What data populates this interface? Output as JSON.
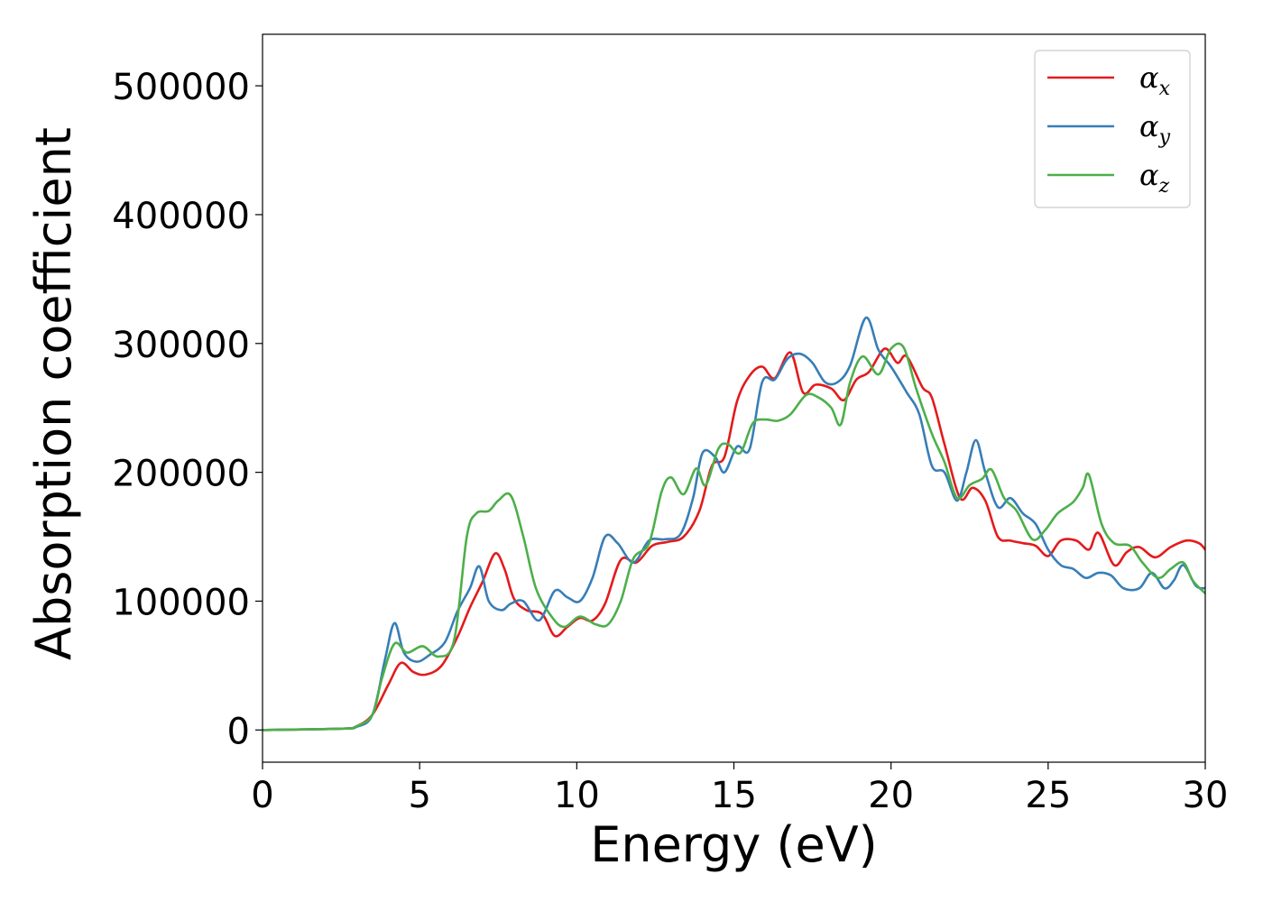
{
  "chart_data": {
    "type": "line",
    "title": "",
    "xlabel": "Energy (eV)",
    "ylabel": "Absorption coefficient",
    "xlim": [
      0,
      30
    ],
    "ylim": [
      -25000,
      540000
    ],
    "xticks": [
      0,
      5,
      10,
      15,
      20,
      25,
      30
    ],
    "yticks": [
      0,
      100000,
      200000,
      300000,
      400000,
      500000
    ],
    "xtick_labels": [
      "0",
      "5",
      "10",
      "15",
      "20",
      "25",
      "30"
    ],
    "ytick_labels": [
      "0",
      "100000",
      "200000",
      "300000",
      "400000",
      "500000"
    ],
    "grid": false,
    "legend_position": "top-right",
    "series": [
      {
        "name": "α_x",
        "label_main": "α",
        "label_sub": "x",
        "color": "#e41a1c",
        "points": [
          [
            0,
            0
          ],
          [
            2.5,
            1000
          ],
          [
            3.0,
            3000
          ],
          [
            3.5,
            12000
          ],
          [
            4.0,
            35000
          ],
          [
            4.4,
            52000
          ],
          [
            4.8,
            45000
          ],
          [
            5.2,
            43000
          ],
          [
            5.7,
            50000
          ],
          [
            6.2,
            72000
          ],
          [
            6.6,
            95000
          ],
          [
            7.0,
            115000
          ],
          [
            7.4,
            137000
          ],
          [
            7.7,
            125000
          ],
          [
            8.0,
            102000
          ],
          [
            8.4,
            93000
          ],
          [
            8.9,
            90000
          ],
          [
            9.3,
            73000
          ],
          [
            9.7,
            80000
          ],
          [
            10.1,
            87000
          ],
          [
            10.5,
            85000
          ],
          [
            10.9,
            98000
          ],
          [
            11.4,
            132000
          ],
          [
            11.9,
            130000
          ],
          [
            12.4,
            143000
          ],
          [
            12.9,
            146000
          ],
          [
            13.4,
            150000
          ],
          [
            13.9,
            170000
          ],
          [
            14.3,
            205000
          ],
          [
            14.7,
            212000
          ],
          [
            15.1,
            255000
          ],
          [
            15.5,
            275000
          ],
          [
            15.9,
            282000
          ],
          [
            16.3,
            273000
          ],
          [
            16.8,
            293000
          ],
          [
            17.2,
            262000
          ],
          [
            17.6,
            268000
          ],
          [
            18.1,
            265000
          ],
          [
            18.5,
            256000
          ],
          [
            18.9,
            272000
          ],
          [
            19.3,
            278000
          ],
          [
            19.8,
            296000
          ],
          [
            20.2,
            285000
          ],
          [
            20.5,
            290000
          ],
          [
            21.0,
            266000
          ],
          [
            21.3,
            258000
          ],
          [
            21.7,
            222000
          ],
          [
            22.2,
            180000
          ],
          [
            22.6,
            188000
          ],
          [
            23.0,
            178000
          ],
          [
            23.4,
            150000
          ],
          [
            23.8,
            147000
          ],
          [
            24.2,
            145000
          ],
          [
            24.6,
            143000
          ],
          [
            25.0,
            135000
          ],
          [
            25.4,
            147000
          ],
          [
            25.9,
            147000
          ],
          [
            26.3,
            140000
          ],
          [
            26.6,
            153000
          ],
          [
            27.1,
            128000
          ],
          [
            27.5,
            138000
          ],
          [
            27.9,
            142000
          ],
          [
            28.4,
            134000
          ],
          [
            28.9,
            142000
          ],
          [
            29.4,
            147000
          ],
          [
            29.8,
            145000
          ],
          [
            30.0,
            140000
          ]
        ]
      },
      {
        "name": "α_y",
        "label_main": "α",
        "label_sub": "y",
        "color": "#377eb8",
        "points": [
          [
            0,
            0
          ],
          [
            2.5,
            1000
          ],
          [
            3.0,
            2500
          ],
          [
            3.5,
            12000
          ],
          [
            3.9,
            55000
          ],
          [
            4.2,
            83000
          ],
          [
            4.5,
            60000
          ],
          [
            4.9,
            53000
          ],
          [
            5.3,
            58000
          ],
          [
            5.8,
            68000
          ],
          [
            6.2,
            92000
          ],
          [
            6.6,
            110000
          ],
          [
            6.9,
            127000
          ],
          [
            7.2,
            100000
          ],
          [
            7.6,
            93000
          ],
          [
            7.9,
            98000
          ],
          [
            8.3,
            100000
          ],
          [
            8.8,
            85000
          ],
          [
            9.3,
            108000
          ],
          [
            9.7,
            103000
          ],
          [
            10.1,
            100000
          ],
          [
            10.5,
            118000
          ],
          [
            10.9,
            150000
          ],
          [
            11.3,
            145000
          ],
          [
            11.8,
            130000
          ],
          [
            12.3,
            147000
          ],
          [
            12.8,
            148000
          ],
          [
            13.3,
            152000
          ],
          [
            13.7,
            180000
          ],
          [
            14.0,
            215000
          ],
          [
            14.4,
            212000
          ],
          [
            14.7,
            200000
          ],
          [
            15.1,
            220000
          ],
          [
            15.5,
            218000
          ],
          [
            15.9,
            270000
          ],
          [
            16.3,
            272000
          ],
          [
            16.7,
            288000
          ],
          [
            17.1,
            292000
          ],
          [
            17.5,
            285000
          ],
          [
            17.9,
            270000
          ],
          [
            18.3,
            270000
          ],
          [
            18.7,
            283000
          ],
          [
            19.2,
            320000
          ],
          [
            19.6,
            295000
          ],
          [
            20.0,
            282000
          ],
          [
            20.5,
            262000
          ],
          [
            20.9,
            245000
          ],
          [
            21.3,
            205000
          ],
          [
            21.7,
            200000
          ],
          [
            22.1,
            178000
          ],
          [
            22.4,
            200000
          ],
          [
            22.7,
            225000
          ],
          [
            23.0,
            200000
          ],
          [
            23.4,
            173000
          ],
          [
            23.8,
            180000
          ],
          [
            24.2,
            168000
          ],
          [
            24.6,
            160000
          ],
          [
            25.0,
            140000
          ],
          [
            25.4,
            128000
          ],
          [
            25.8,
            125000
          ],
          [
            26.2,
            118000
          ],
          [
            26.6,
            122000
          ],
          [
            27.0,
            120000
          ],
          [
            27.4,
            110000
          ],
          [
            27.9,
            110000
          ],
          [
            28.3,
            122000
          ],
          [
            28.7,
            110000
          ],
          [
            29.0,
            116000
          ],
          [
            29.3,
            128000
          ],
          [
            29.7,
            112000
          ],
          [
            30.0,
            110000
          ]
        ]
      },
      {
        "name": "α_z",
        "label_main": "α",
        "label_sub": "z",
        "color": "#4daf4a",
        "points": [
          [
            0,
            0
          ],
          [
            2.5,
            1000
          ],
          [
            3.0,
            3000
          ],
          [
            3.5,
            12000
          ],
          [
            3.8,
            40000
          ],
          [
            4.2,
            67000
          ],
          [
            4.6,
            60000
          ],
          [
            5.1,
            65000
          ],
          [
            5.6,
            57000
          ],
          [
            6.1,
            70000
          ],
          [
            6.5,
            150000
          ],
          [
            6.8,
            168000
          ],
          [
            7.2,
            170000
          ],
          [
            7.5,
            178000
          ],
          [
            7.9,
            182000
          ],
          [
            8.3,
            150000
          ],
          [
            8.7,
            110000
          ],
          [
            9.2,
            88000
          ],
          [
            9.6,
            80000
          ],
          [
            10.1,
            88000
          ],
          [
            10.6,
            82000
          ],
          [
            11.0,
            82000
          ],
          [
            11.4,
            100000
          ],
          [
            11.8,
            133000
          ],
          [
            12.3,
            145000
          ],
          [
            12.7,
            185000
          ],
          [
            13.0,
            196000
          ],
          [
            13.4,
            183000
          ],
          [
            13.8,
            203000
          ],
          [
            14.1,
            190000
          ],
          [
            14.5,
            218000
          ],
          [
            14.8,
            222000
          ],
          [
            15.2,
            215000
          ],
          [
            15.6,
            238000
          ],
          [
            16.0,
            241000
          ],
          [
            16.4,
            240000
          ],
          [
            16.8,
            245000
          ],
          [
            17.3,
            260000
          ],
          [
            17.7,
            258000
          ],
          [
            18.1,
            250000
          ],
          [
            18.4,
            237000
          ],
          [
            18.7,
            270000
          ],
          [
            19.1,
            290000
          ],
          [
            19.6,
            276000
          ],
          [
            20.0,
            296000
          ],
          [
            20.4,
            297000
          ],
          [
            20.8,
            265000
          ],
          [
            21.3,
            230000
          ],
          [
            21.7,
            208000
          ],
          [
            22.1,
            180000
          ],
          [
            22.5,
            190000
          ],
          [
            22.9,
            195000
          ],
          [
            23.2,
            202000
          ],
          [
            23.6,
            180000
          ],
          [
            24.0,
            170000
          ],
          [
            24.5,
            148000
          ],
          [
            24.9,
            155000
          ],
          [
            25.3,
            168000
          ],
          [
            25.8,
            177000
          ],
          [
            26.1,
            188000
          ],
          [
            26.3,
            198000
          ],
          [
            26.7,
            160000
          ],
          [
            27.1,
            145000
          ],
          [
            27.6,
            143000
          ],
          [
            28.0,
            130000
          ],
          [
            28.5,
            118000
          ],
          [
            28.9,
            125000
          ],
          [
            29.3,
            130000
          ],
          [
            29.6,
            116000
          ],
          [
            30.0,
            106000
          ]
        ]
      }
    ]
  }
}
